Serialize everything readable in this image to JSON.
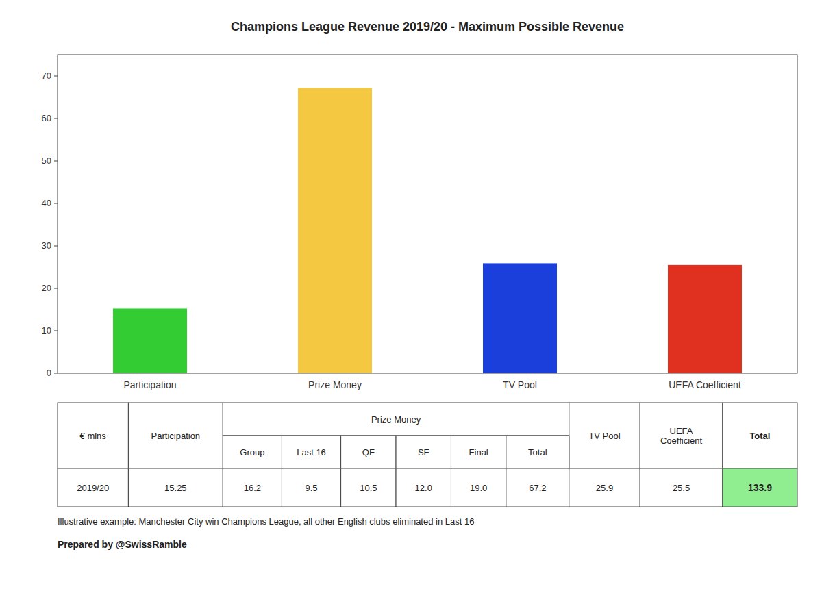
{
  "chart_data": {
    "type": "bar",
    "title": "Champions League Revenue 2019/20 - Maximum Possible Revenue",
    "categories": [
      "Participation",
      "Prize Money",
      "TV Pool",
      "UEFA Coefficient"
    ],
    "values": [
      15.25,
      67.2,
      25.9,
      25.5
    ],
    "colors": [
      "#33cc33",
      "#f5c842",
      "#1a3fdb",
      "#e03020"
    ],
    "ylim": [
      0,
      75
    ],
    "yticks": [
      0,
      10,
      20,
      30,
      40,
      50,
      60,
      70
    ],
    "grid": false,
    "table": {
      "header": [
        "€ mlns",
        "Participation",
        "Prize Money",
        "TV Pool",
        "UEFA\nCoefficient",
        "Total"
      ],
      "subheader": [
        "Group",
        "Last 16",
        "QF",
        "SF",
        "Final",
        "Total"
      ],
      "row": [
        "2019/20",
        "15.25",
        "16.2",
        "9.5",
        "10.5",
        "12.0",
        "19.0",
        "67.2",
        "25.9",
        "25.5",
        "133.9"
      ],
      "color": "#90ee90"
    },
    "annotations": [
      "Illustrative example: Manchester City win Champions League, all other English clubs eliminated in Last 16",
      "Prepared by @SwissRamble"
    ]
  }
}
